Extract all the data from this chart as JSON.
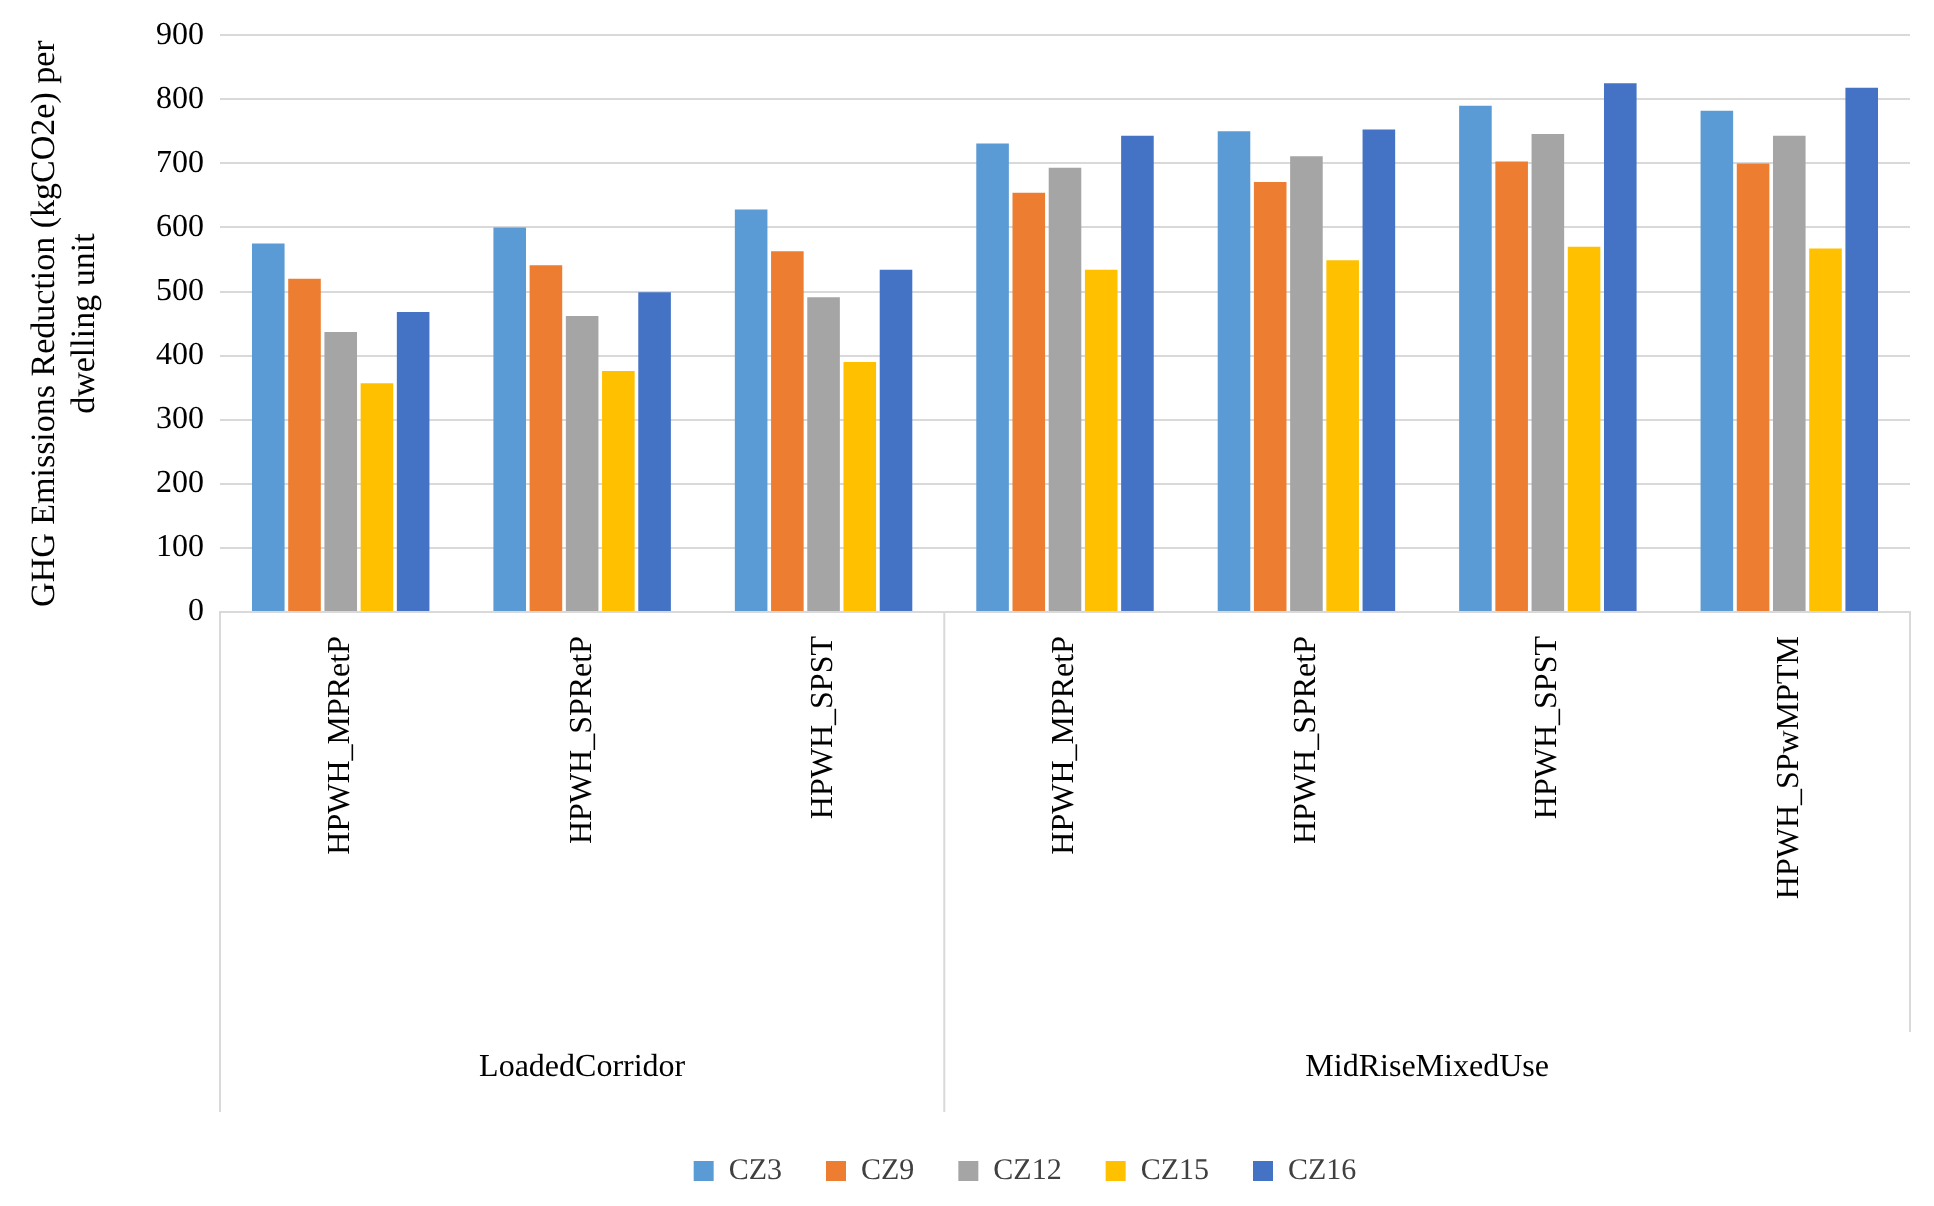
{
  "chart_data": {
    "type": "bar",
    "ylabel": "GHG Emissions Reduction (kgCO2e) per dwelling unit",
    "categories": [
      "HPWH_MPRetP",
      "HPWH_SPRetP",
      "HPWH_SPST",
      "HPWH_MPRetP",
      "HPWH_SPRetP",
      "HPWH_SPST",
      "HPWH_SPwMPTM"
    ],
    "series": [
      {
        "name": "CZ3",
        "color": "#5b9bd5",
        "values": [
          575,
          600,
          628,
          731,
          750,
          790,
          782
        ]
      },
      {
        "name": "CZ9",
        "color": "#ed7d31",
        "values": [
          520,
          541,
          563,
          654,
          671,
          703,
          700
        ]
      },
      {
        "name": "CZ12",
        "color": "#a5a5a5",
        "values": [
          437,
          462,
          491,
          693,
          711,
          746,
          743
        ]
      },
      {
        "name": "CZ15",
        "color": "#ffc000",
        "values": [
          357,
          376,
          390,
          534,
          549,
          570,
          567
        ]
      },
      {
        "name": "CZ16",
        "color": "#4472c4",
        "values": [
          468,
          499,
          534,
          743,
          753,
          825,
          818
        ]
      }
    ],
    "ylim": [
      0,
      900
    ],
    "yticks": [
      0,
      100,
      200,
      300,
      400,
      500,
      600,
      700,
      800,
      900
    ],
    "annotations": [
      "LoadedCorridor",
      "MidRiseMixedUse"
    ],
    "grid": "y",
    "legend": "bottom"
  }
}
